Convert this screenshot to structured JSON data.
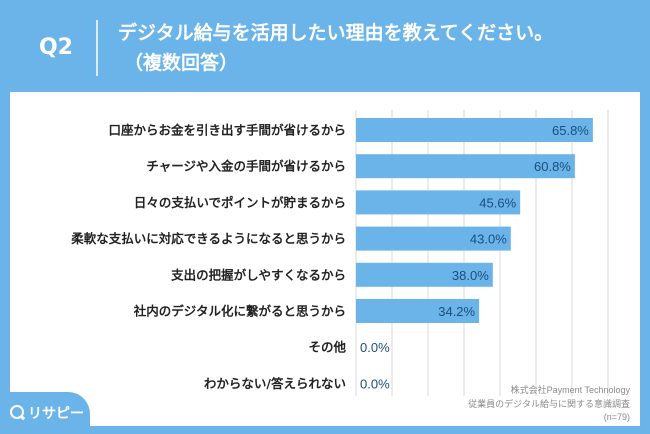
{
  "header": {
    "question_number": "Q2",
    "title_line1": "デジタル給与を活用したい理由を教えてください。",
    "title_line2": "（複数回答）"
  },
  "footnote": {
    "line1": "株式会社Payment Technology",
    "line2": "従業員のデジタル給与に関する意識調査",
    "line3": "(n=79)"
  },
  "brand": {
    "name": "リサピー",
    "icon": "search-icon"
  },
  "colors": {
    "background": "#6bb4ea",
    "bar": "#6bb4ea",
    "text": "#222222",
    "value_text": "#1a4f7a",
    "grid": "#d9d9d9"
  },
  "chart_data": {
    "type": "bar",
    "orientation": "horizontal",
    "unit": "%",
    "xlim": [
      0,
      70
    ],
    "grid": true,
    "categories": [
      "口座からお金を引き出す手間が省けるから",
      "チャージや入金の手間が省けるから",
      "日々の支払いでポイントが貯まるから",
      "柔軟な支払いに対応できるようになると思うから",
      "支出の把握がしやすくなるから",
      "社内のデジタル化に繋がると思うから",
      "その他",
      "わからない/答えられない"
    ],
    "values": [
      65.8,
      60.8,
      45.6,
      43.0,
      38.0,
      34.2,
      0.0,
      0.0
    ],
    "labels": [
      "65.8%",
      "60.8%",
      "45.6%",
      "43.0%",
      "38.0%",
      "34.2%",
      "0.0%",
      "0.0%"
    ]
  }
}
